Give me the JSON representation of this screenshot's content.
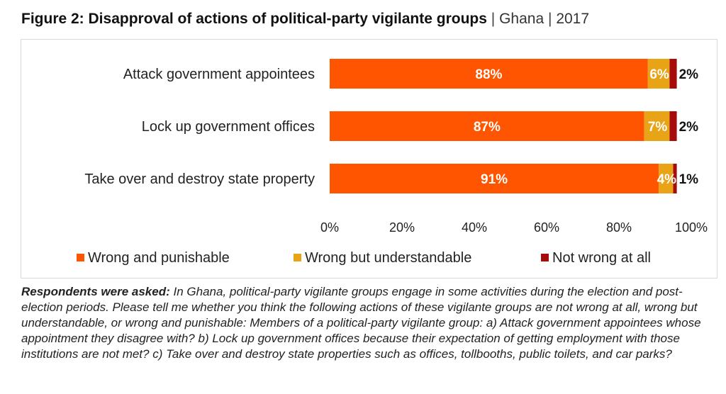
{
  "title": {
    "figure": "Figure 2: Disapproval of actions of political-party vigilante groups",
    "sep1": "|",
    "country": "Ghana",
    "sep2": "|",
    "year": "2017"
  },
  "colors": {
    "wrong_punishable": "#ff5500",
    "wrong_understandable": "#e8a317",
    "not_wrong": "#a60c0c",
    "frame": "#d9d9d9"
  },
  "chart_data": {
    "type": "bar",
    "orientation": "horizontal",
    "stacked": true,
    "categories": [
      "Attack government appointees",
      "Lock up government offices",
      "Take over and destroy state property"
    ],
    "series": [
      {
        "name": "Wrong and punishable",
        "values": [
          88,
          87,
          91
        ],
        "labels": [
          "88%",
          "87%",
          "91%"
        ],
        "color": "#ff5500"
      },
      {
        "name": "Wrong but understandable",
        "values": [
          6,
          7,
          4
        ],
        "labels": [
          "6%",
          "7%",
          "4%"
        ],
        "color": "#e8a317"
      },
      {
        "name": "Not wrong at all",
        "values": [
          2,
          2,
          1
        ],
        "labels": [
          "2%",
          "2%",
          "1%"
        ],
        "color": "#a60c0c"
      }
    ],
    "xlim": [
      0,
      100
    ],
    "xticks": [
      "0%",
      "20%",
      "40%",
      "60%",
      "80%",
      "100%"
    ],
    "grid": false,
    "legend": "bottom"
  },
  "note": {
    "lead": "Respondents were asked:",
    "text": "In Ghana, political-party vigilante groups engage in some activities during the election and post-election periods. Please tell me whether you think the following actions of these vigilante groups are not wrong at all, wrong but understandable, or wrong and punishable: Members of a political-party vigilante group: a) Attack government appointees whose appointment they disagree with? b) Lock up government offices because their expectation of getting employment with those institutions are not met? c) Take over and destroy state properties such as offices, tollbooths, public toilets, and car parks?"
  }
}
